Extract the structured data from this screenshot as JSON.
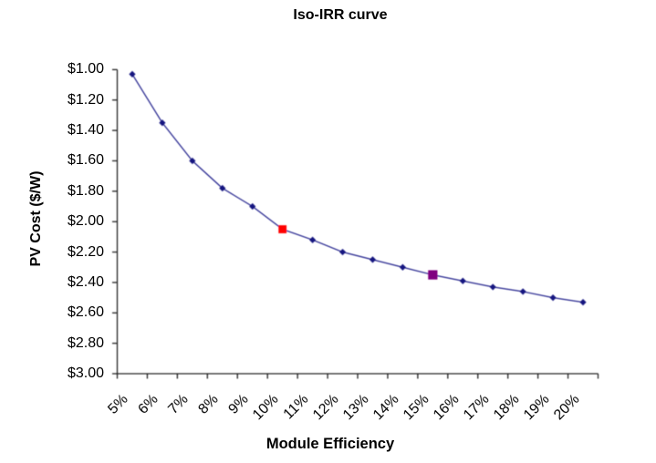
{
  "chart_data": {
    "type": "line",
    "title": "Iso-IRR curve",
    "xlabel": "Module Efficiency",
    "ylabel": "PV Cost ($/W)",
    "categories": [
      "5%",
      "6%",
      "7%",
      "8%",
      "9%",
      "10%",
      "11%",
      "12%",
      "13%",
      "14%",
      "15%",
      "16%",
      "17%",
      "18%",
      "19%",
      "20%"
    ],
    "series": [
      {
        "name": "Iso-IRR curve",
        "color": "#26268e",
        "marker": "diamond",
        "marker_color": "#191980",
        "values": [
          1.03,
          1.35,
          1.6,
          1.78,
          1.9,
          2.05,
          2.12,
          2.2,
          2.25,
          2.3,
          2.35,
          2.39,
          2.43,
          2.46,
          2.5,
          2.53
        ]
      }
    ],
    "highlight_points": [
      {
        "category": "10%",
        "value": 2.05,
        "marker": "square",
        "color": "#ff0000",
        "name": "red-highlight"
      },
      {
        "category": "15%",
        "value": 2.35,
        "marker": "square",
        "color": "#800080",
        "name": "purple-highlight"
      }
    ],
    "y_axis": {
      "tick_labels": [
        "$1.00",
        "$1.20",
        "$1.40",
        "$1.60",
        "$1.80",
        "$2.00",
        "$2.20",
        "$2.40",
        "$2.60",
        "$2.80",
        "$3.00"
      ],
      "tick_values": [
        1.0,
        1.2,
        1.4,
        1.6,
        1.8,
        2.0,
        2.2,
        2.4,
        2.6,
        2.8,
        3.0
      ],
      "min": 1.0,
      "max": 3.0,
      "step": 0.2,
      "reversed": true,
      "number_format": "$0.00"
    },
    "x_axis": {
      "tick_label_rotation_deg": 45
    },
    "ylim": [
      1.0,
      3.0
    ],
    "grid": false,
    "legend": false,
    "plot_background": "#ffffff",
    "axis_color": "#222222"
  }
}
